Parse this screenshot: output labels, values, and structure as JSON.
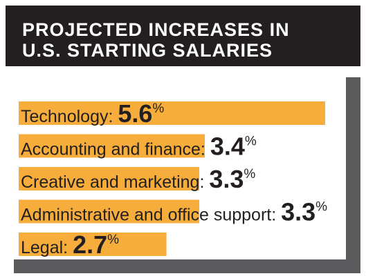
{
  "title_lines": [
    "PROJECTED INCREASES IN",
    "U.S. STARTING SALARIES"
  ],
  "colors": {
    "header_bg": "#231f20",
    "bar": "#f6ad3c",
    "shadow": "#5b5b5e",
    "text": "#231f20"
  },
  "chart_data": {
    "type": "bar",
    "orientation": "horizontal",
    "title": "PROJECTED INCREASES IN U.S. STARTING SALARIES",
    "categories": [
      "Technology:",
      "Accounting and finance:",
      "Creative and marketing:",
      "Administrative and office support:",
      "Legal:"
    ],
    "values": [
      5.6,
      3.4,
      3.3,
      3.3,
      2.7
    ],
    "value_labels": [
      "5.6",
      "3.4",
      "3.3",
      "3.3",
      "2.7"
    ],
    "unit": "%",
    "xlim": [
      0,
      5.6
    ],
    "grid": false,
    "legend": "none"
  }
}
